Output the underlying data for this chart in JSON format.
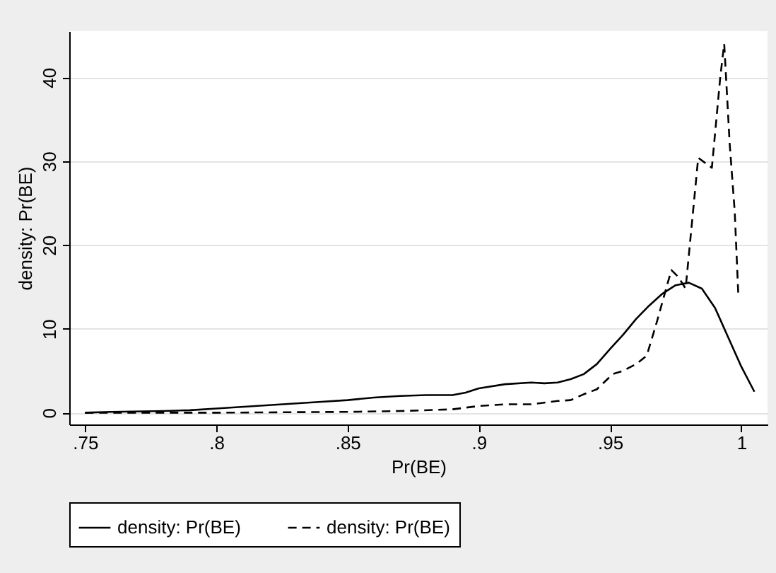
{
  "chart_data": {
    "type": "line",
    "xlabel": "Pr(BE)",
    "ylabel": "density: Pr(BE)",
    "xlim": [
      0.744,
      1.01
    ],
    "ylim": [
      -1.4,
      45.5
    ],
    "xticks": [
      {
        "value": 0.75,
        "label": ".75"
      },
      {
        "value": 0.8,
        "label": ".8"
      },
      {
        "value": 0.85,
        "label": ".85"
      },
      {
        "value": 0.9,
        "label": ".9"
      },
      {
        "value": 0.95,
        "label": ".95"
      },
      1
    ],
    "yticks": [
      0,
      10,
      20,
      30,
      40
    ],
    "grid": "y",
    "legend": "bottom",
    "series": [
      {
        "name": "density: Pr(BE)",
        "color": "#000000",
        "line_style": "solid",
        "x": [
          0.75,
          0.76,
          0.78,
          0.79,
          0.8,
          0.82,
          0.84,
          0.85,
          0.86,
          0.87,
          0.88,
          0.89,
          0.895,
          0.9,
          0.91,
          0.92,
          0.925,
          0.93,
          0.935,
          0.94,
          0.945,
          0.95,
          0.955,
          0.96,
          0.965,
          0.97,
          0.975,
          0.98,
          0.985,
          0.99,
          0.995,
          1.0,
          1.005
        ],
        "values": [
          0,
          0.1,
          0.2,
          0.3,
          0.5,
          0.9,
          1.3,
          1.5,
          1.8,
          2.0,
          2.1,
          2.1,
          2.4,
          2.9,
          3.4,
          3.6,
          3.5,
          3.6,
          4.0,
          4.6,
          5.8,
          7.6,
          9.3,
          11.2,
          12.8,
          14.2,
          15.2,
          15.5,
          14.8,
          12.5,
          9.0,
          5.5,
          2.5
        ]
      },
      {
        "name": "density: Pr(BE)",
        "color": "#000000",
        "line_style": "dashed",
        "x": [
          0.75,
          0.8,
          0.85,
          0.87,
          0.89,
          0.895,
          0.9,
          0.91,
          0.92,
          0.93,
          0.935,
          0.94,
          0.945,
          0.951,
          0.955,
          0.96,
          0.964,
          0.968,
          0.972,
          0.9734,
          0.976,
          0.9788,
          0.9836,
          0.9888,
          0.992,
          0.9935,
          0.9956,
          0.9975,
          0.9989
        ],
        "values": [
          0,
          0,
          0.1,
          0.2,
          0.4,
          0.6,
          0.8,
          1.0,
          1.0,
          1.4,
          1.5,
          2.2,
          2.8,
          4.6,
          5.0,
          5.8,
          6.8,
          11,
          15.5,
          17,
          16.2,
          14.8,
          30.4,
          29.2,
          40,
          44,
          32,
          24,
          13.9
        ]
      }
    ]
  }
}
